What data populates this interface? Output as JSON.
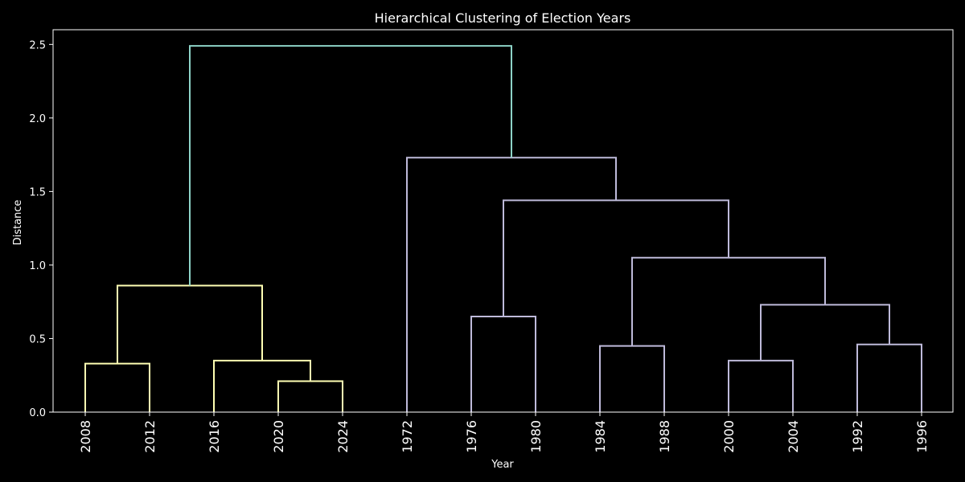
{
  "chart_data": {
    "type": "dendrogram",
    "title": "Hierarchical Clustering of Election Years",
    "xlabel": "Year",
    "ylabel": "Distance",
    "ylim": [
      0,
      2.6
    ],
    "yticks": [
      "0.0",
      "0.5",
      "1.0",
      "1.5",
      "2.0",
      "2.5"
    ],
    "ytick_values": [
      0,
      0.5,
      1.0,
      1.5,
      2.0,
      2.5
    ],
    "leaves": [
      "2008",
      "2012",
      "2016",
      "2020",
      "2024",
      "1972",
      "1976",
      "1980",
      "1984",
      "1988",
      "2000",
      "2004",
      "1992",
      "1996"
    ],
    "colors": {
      "background": "#000000",
      "foreground": "#ffffff",
      "root_link": "#8dd3c7",
      "cluster_1": "#ffffb3",
      "cluster_2": "#bebada"
    },
    "merges": [
      {
        "left": 0,
        "right": 1,
        "height": 0.33,
        "color": "cluster_1"
      },
      {
        "left": 3,
        "right": 4,
        "height": 0.21,
        "color": "cluster_1"
      },
      {
        "left": 2,
        "right": "m1",
        "height": 0.35,
        "color": "cluster_1"
      },
      {
        "left": "m0",
        "right": "m2",
        "height": 0.86,
        "color": "cluster_1"
      },
      {
        "left": 6,
        "right": 7,
        "height": 0.65,
        "color": "cluster_2"
      },
      {
        "left": 8,
        "right": 9,
        "height": 0.45,
        "color": "cluster_2"
      },
      {
        "left": 10,
        "right": 11,
        "height": 0.35,
        "color": "cluster_2"
      },
      {
        "left": 12,
        "right": 13,
        "height": 0.46,
        "color": "cluster_2"
      },
      {
        "left": "m6",
        "right": "m7",
        "height": 0.73,
        "color": "cluster_2"
      },
      {
        "left": "m5",
        "right": "m8",
        "height": 1.05,
        "color": "cluster_2"
      },
      {
        "left": "m4",
        "right": "m9",
        "height": 1.44,
        "color": "cluster_2"
      },
      {
        "left": 5,
        "right": "m10",
        "height": 1.73,
        "color": "cluster_2"
      },
      {
        "left": "m3",
        "right": "m11",
        "height": 2.49,
        "color": "root_link"
      }
    ]
  }
}
